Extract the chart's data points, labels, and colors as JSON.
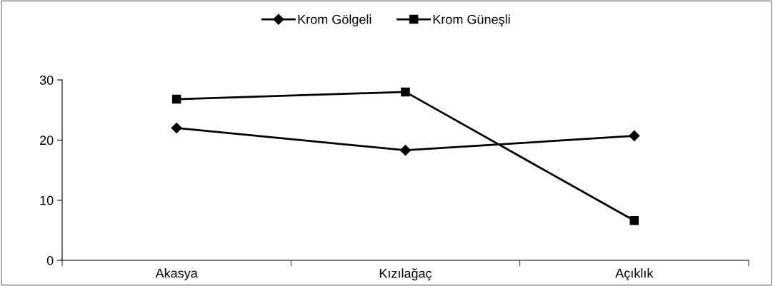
{
  "chart_data": {
    "type": "line",
    "categories": [
      "Akasya",
      "Kızılağaç",
      "Açıklık"
    ],
    "series": [
      {
        "name": "Krom Gölgeli",
        "color": "#000000",
        "marker": "diamond",
        "values": [
          22.0,
          18.3,
          20.7
        ]
      },
      {
        "name": "Krom Güneşli",
        "color": "#000000",
        "marker": "square",
        "values": [
          26.8,
          28.0,
          6.6
        ]
      }
    ],
    "ylim": [
      0,
      30
    ],
    "yticks": [
      0,
      10,
      20,
      30
    ],
    "grid": false,
    "legend": "top",
    "line_style": "solid"
  }
}
